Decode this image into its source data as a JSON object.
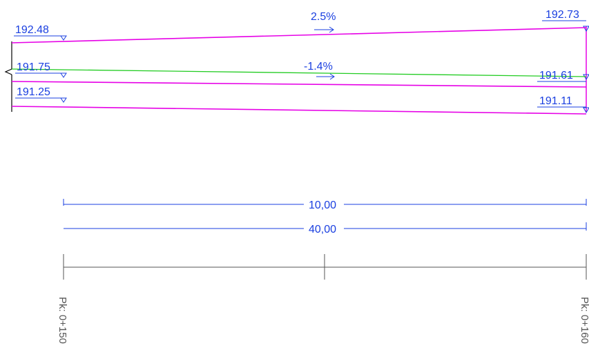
{
  "elevations": {
    "top_left": "192.48",
    "top_right": "192.73",
    "mid_left": "191.75",
    "mid_right": "191.61",
    "bottom_left": "191.25",
    "bottom_right": "191.11"
  },
  "slopes": {
    "upper": "2.5%",
    "lower": "-1.4%"
  },
  "dimensions": {
    "first": "10,00",
    "second": "40,00"
  },
  "stations": {
    "start": "Pk: 0+150",
    "end": "Pk: 0+160"
  },
  "colors": {
    "magenta_line": "#e600e6",
    "green_line": "#22cc22",
    "blue_text": "#1a3fe0",
    "dim_line": "#1a3fe0",
    "axis_line": "#555555"
  }
}
